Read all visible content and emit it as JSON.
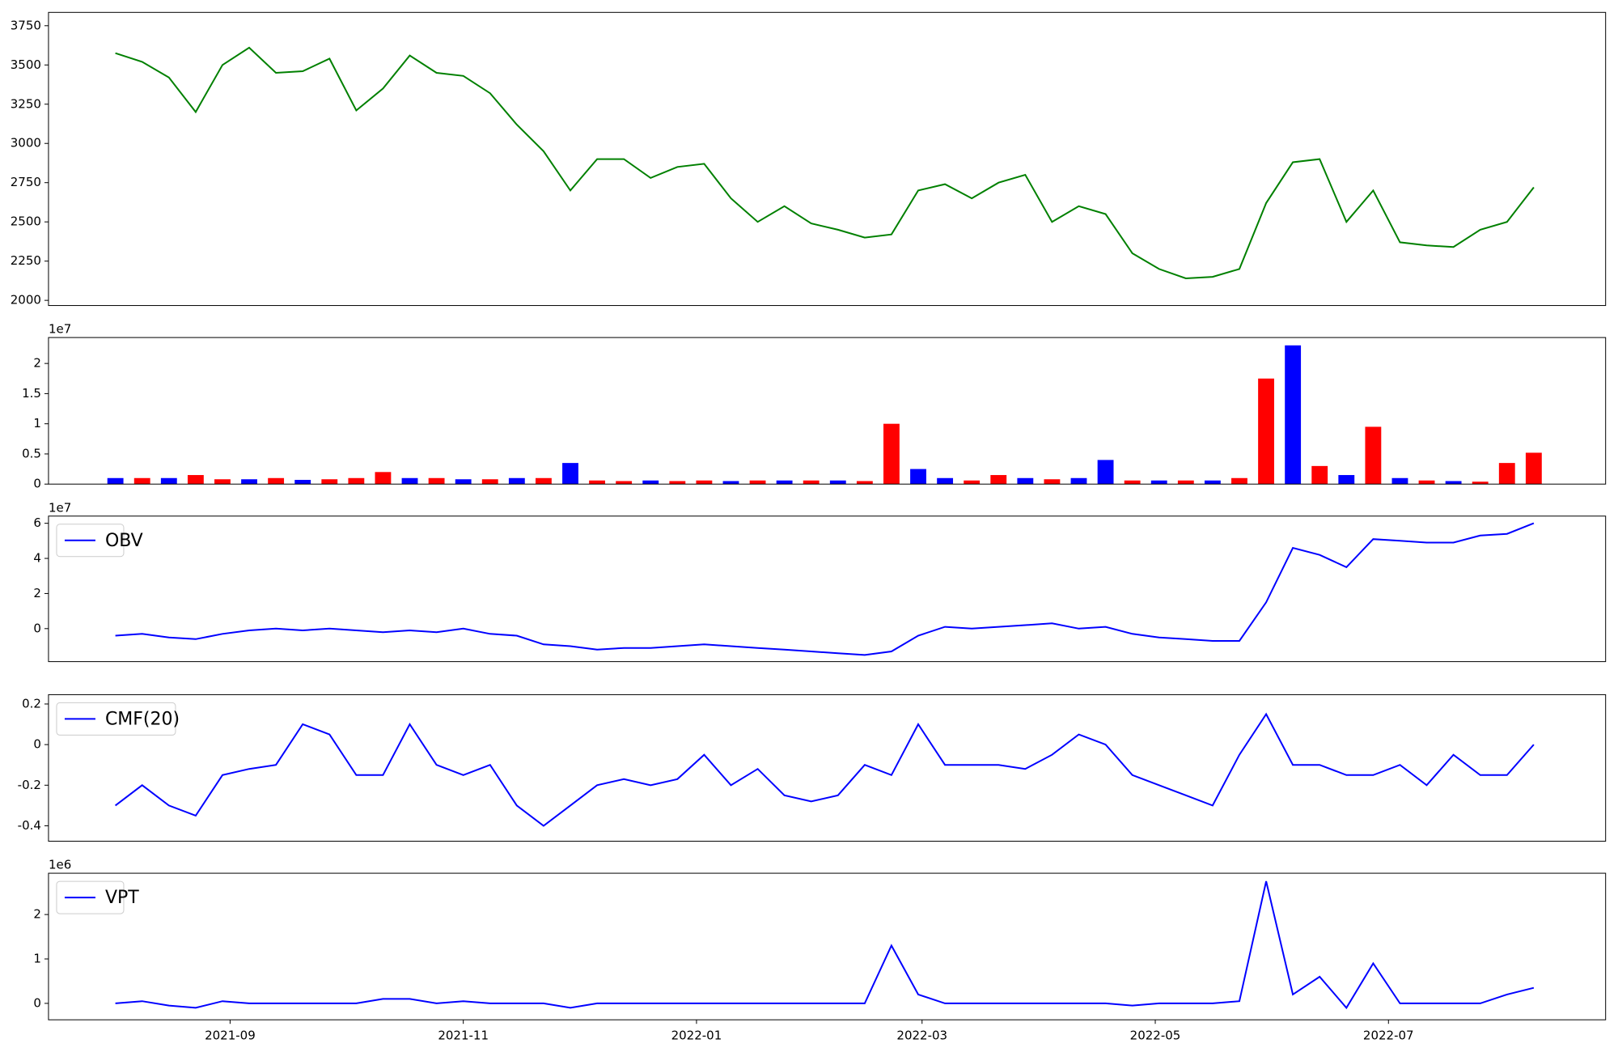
{
  "chart_data": [
    {
      "type": "line",
      "x": [
        18841,
        18848,
        18855,
        18862,
        18869,
        18876,
        18883,
        18890,
        18897,
        18904,
        18911,
        18918,
        18925,
        18932,
        18939,
        18946,
        18953,
        18960,
        18967,
        18974,
        18981,
        18988,
        18995,
        19002,
        19009,
        19016,
        19023,
        19030,
        19037,
        19044,
        19051,
        19058,
        19065,
        19072,
        19079,
        19086,
        19093,
        19100,
        19107,
        19114,
        19121,
        19128,
        19135,
        19142,
        19149,
        19156,
        19163,
        19170,
        19177,
        19184,
        19191,
        19198,
        19205,
        19212
      ],
      "values": [
        3575,
        3520,
        3420,
        3200,
        3500,
        3610,
        3450,
        3460,
        3540,
        3210,
        3350,
        3560,
        3450,
        3430,
        3320,
        3120,
        2950,
        2700,
        2900,
        2900,
        2780,
        2850,
        2870,
        2650,
        2500,
        2600,
        2490,
        2450,
        2400,
        2420,
        2700,
        2740,
        2650,
        2750,
        2800,
        2500,
        2600,
        2550,
        2300,
        2200,
        2140,
        2150,
        2200,
        2620,
        2880,
        2900,
        2500,
        2700,
        2370,
        2350,
        2340,
        2450,
        2500,
        2720
      ],
      "color": "#008000",
      "xlim": [
        18823.5,
        19230.8
      ],
      "ylim": [
        1967,
        3835
      ],
      "yticks": [
        2000,
        2250,
        2500,
        2750,
        3000,
        3250,
        3500,
        3750
      ]
    },
    {
      "type": "bar",
      "offset_label": "1e7",
      "x": [
        18841,
        18848,
        18855,
        18862,
        18869,
        18876,
        18883,
        18890,
        18897,
        18904,
        18911,
        18918,
        18925,
        18932,
        18939,
        18946,
        18953,
        18960,
        18967,
        18974,
        18981,
        18988,
        18995,
        19002,
        19009,
        19016,
        19023,
        19030,
        19037,
        19044,
        19051,
        19058,
        19065,
        19072,
        19079,
        19086,
        19093,
        19100,
        19107,
        19114,
        19121,
        19128,
        19135,
        19142,
        19149,
        19156,
        19163,
        19170,
        19177,
        19184,
        19191,
        19198,
        19205,
        19212
      ],
      "values": [
        0.1,
        0.1,
        0.1,
        0.15,
        0.08,
        0.08,
        0.1,
        0.07,
        0.08,
        0.1,
        0.2,
        0.1,
        0.1,
        0.08,
        0.08,
        0.1,
        0.1,
        0.35,
        0.06,
        0.05,
        0.06,
        0.05,
        0.06,
        0.05,
        0.06,
        0.06,
        0.06,
        0.06,
        0.05,
        1.0,
        0.25,
        0.1,
        0.06,
        0.15,
        0.1,
        0.08,
        0.1,
        0.4,
        0.06,
        0.06,
        0.06,
        0.06,
        0.1,
        1.75,
        2.3,
        0.3,
        0.15,
        0.95,
        0.1,
        0.06,
        0.05,
        0.04,
        0.35,
        0.52
      ],
      "colors": [
        "#0000ff",
        "#ff0000",
        "#0000ff",
        "#ff0000",
        "#ff0000",
        "#0000ff",
        "#ff0000",
        "#0000ff",
        "#ff0000",
        "#ff0000",
        "#ff0000",
        "#0000ff",
        "#ff0000",
        "#0000ff",
        "#ff0000",
        "#0000ff",
        "#ff0000",
        "#0000ff",
        "#ff0000",
        "#ff0000",
        "#0000ff",
        "#ff0000",
        "#ff0000",
        "#0000ff",
        "#ff0000",
        "#0000ff",
        "#ff0000",
        "#0000ff",
        "#ff0000",
        "#ff0000",
        "#0000ff",
        "#0000ff",
        "#ff0000",
        "#ff0000",
        "#0000ff",
        "#ff0000",
        "#0000ff",
        "#0000ff",
        "#ff0000",
        "#0000ff",
        "#ff0000",
        "#0000ff",
        "#ff0000",
        "#ff0000",
        "#0000ff",
        "#ff0000",
        "#0000ff",
        "#ff0000",
        "#0000ff",
        "#ff0000",
        "#0000ff",
        "#ff0000",
        "#ff0000",
        "#ff0000"
      ],
      "xlim": [
        18823.5,
        19230.8
      ],
      "ylim": [
        0,
        2.43
      ],
      "yticks": [
        0,
        0.5,
        1.0,
        1.5,
        2.0
      ]
    },
    {
      "type": "line",
      "offset_label": "1e7",
      "x": [
        18841,
        18848,
        18855,
        18862,
        18869,
        18876,
        18883,
        18890,
        18897,
        18904,
        18911,
        18918,
        18925,
        18932,
        18939,
        18946,
        18953,
        18960,
        18967,
        18974,
        18981,
        18988,
        18995,
        19002,
        19009,
        19016,
        19023,
        19030,
        19037,
        19044,
        19051,
        19058,
        19065,
        19072,
        19079,
        19086,
        19093,
        19100,
        19107,
        19114,
        19121,
        19128,
        19135,
        19142,
        19149,
        19156,
        19163,
        19170,
        19177,
        19184,
        19191,
        19198,
        19205,
        19212
      ],
      "series": [
        {
          "name": "OBV",
          "color": "#0000ff",
          "values": [
            -0.4,
            -0.3,
            -0.5,
            -0.6,
            -0.3,
            -0.1,
            0.0,
            -0.1,
            0.0,
            -0.1,
            -0.2,
            -0.1,
            -0.2,
            0.0,
            -0.3,
            -0.4,
            -0.9,
            -1.0,
            -1.2,
            -1.1,
            -1.1,
            -1.0,
            -0.9,
            -1.0,
            -1.1,
            -1.2,
            -1.3,
            -1.4,
            -1.5,
            -1.3,
            -0.4,
            0.1,
            0.0,
            0.1,
            0.2,
            0.3,
            0.0,
            0.1,
            -0.3,
            -0.5,
            -0.6,
            -0.7,
            -0.7,
            1.5,
            4.6,
            4.2,
            3.5,
            5.1,
            5.0,
            4.9,
            4.9,
            5.3,
            5.4,
            6.0
          ]
        }
      ],
      "xlim": [
        18823.5,
        19230.8
      ],
      "ylim": [
        -1.88,
        6.41
      ],
      "yticks": [
        0,
        2,
        4,
        6
      ]
    },
    {
      "type": "line",
      "x": [
        18841,
        18848,
        18855,
        18862,
        18869,
        18876,
        18883,
        18890,
        18897,
        18904,
        18911,
        18918,
        18925,
        18932,
        18939,
        18946,
        18953,
        18960,
        18967,
        18974,
        18981,
        18988,
        18995,
        19002,
        19009,
        19016,
        19023,
        19030,
        19037,
        19044,
        19051,
        19058,
        19065,
        19072,
        19079,
        19086,
        19093,
        19100,
        19107,
        19114,
        19121,
        19128,
        19135,
        19142,
        19149,
        19156,
        19163,
        19170,
        19177,
        19184,
        19191,
        19198,
        19205,
        19212
      ],
      "series": [
        {
          "name": "CMF(20)",
          "color": "#0000ff",
          "values": [
            -0.3,
            -0.2,
            -0.3,
            -0.35,
            -0.15,
            -0.12,
            -0.1,
            0.1,
            0.05,
            -0.15,
            -0.15,
            0.1,
            -0.1,
            -0.15,
            -0.1,
            -0.3,
            -0.4,
            -0.3,
            -0.2,
            -0.17,
            -0.2,
            -0.17,
            -0.05,
            -0.2,
            -0.12,
            -0.25,
            -0.28,
            -0.25,
            -0.1,
            -0.15,
            0.1,
            -0.1,
            -0.1,
            -0.1,
            -0.12,
            -0.05,
            0.05,
            0.0,
            -0.15,
            -0.2,
            -0.25,
            -0.3,
            -0.05,
            0.15,
            -0.1,
            -0.1,
            -0.15,
            -0.15,
            -0.1,
            -0.2,
            -0.05,
            -0.15,
            -0.15,
            0.0
          ]
        }
      ],
      "xlim": [
        18823.5,
        19230.8
      ],
      "ylim": [
        -0.476,
        0.246
      ],
      "yticks": [
        -0.4,
        -0.2,
        0.0,
        0.2
      ]
    },
    {
      "type": "line",
      "offset_label": "1e6",
      "x": [
        18841,
        18848,
        18855,
        18862,
        18869,
        18876,
        18883,
        18890,
        18897,
        18904,
        18911,
        18918,
        18925,
        18932,
        18939,
        18946,
        18953,
        18960,
        18967,
        18974,
        18981,
        18988,
        18995,
        19002,
        19009,
        19016,
        19023,
        19030,
        19037,
        19044,
        19051,
        19058,
        19065,
        19072,
        19079,
        19086,
        19093,
        19100,
        19107,
        19114,
        19121,
        19128,
        19135,
        19142,
        19149,
        19156,
        19163,
        19170,
        19177,
        19184,
        19191,
        19198,
        19205,
        19212
      ],
      "series": [
        {
          "name": "VPT",
          "color": "#0000ff",
          "values": [
            0.0,
            0.05,
            -0.05,
            -0.1,
            0.05,
            0.0,
            0.0,
            0.0,
            0.0,
            0.0,
            0.1,
            0.1,
            0.0,
            0.05,
            0.0,
            0.0,
            0.0,
            -0.1,
            0.0,
            0.0,
            0.0,
            0.0,
            0.0,
            0.0,
            0.0,
            0.0,
            0.0,
            0.0,
            0.0,
            1.3,
            0.2,
            0.0,
            0.0,
            0.0,
            0.0,
            0.0,
            0.0,
            0.0,
            -0.05,
            0.0,
            0.0,
            0.0,
            0.05,
            2.75,
            0.2,
            0.6,
            -0.1,
            0.9,
            0.0,
            0.0,
            0.0,
            0.0,
            0.2,
            0.35
          ]
        }
      ],
      "xlim": [
        18823.5,
        19230.8
      ],
      "ylim": [
        -0.37,
        2.93
      ],
      "yticks": [
        0,
        1,
        2
      ],
      "xticks": [
        {
          "value": 18871,
          "label": "2021-09"
        },
        {
          "value": 18932,
          "label": "2021-11"
        },
        {
          "value": 18993,
          "label": "2022-01"
        },
        {
          "value": 19052,
          "label": "2022-03"
        },
        {
          "value": 19113,
          "label": "2022-05"
        },
        {
          "value": 19174,
          "label": "2022-07"
        }
      ]
    }
  ]
}
